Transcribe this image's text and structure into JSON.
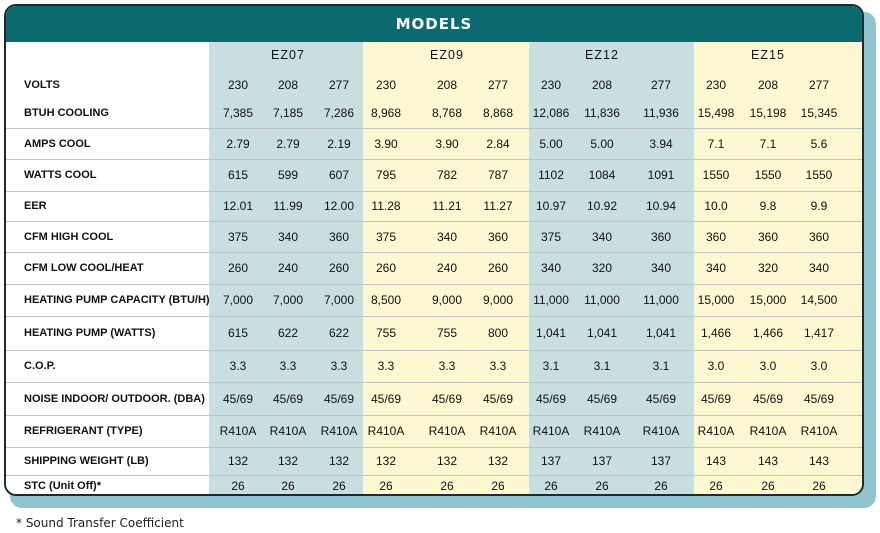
{
  "header": {
    "title": "MODELS"
  },
  "models": [
    "EZ07",
    "EZ09",
    "EZ12",
    "EZ15"
  ],
  "voltage_row": {
    "label": "VOLTS",
    "values": [
      "230",
      "208",
      "277",
      "230",
      "208",
      "277",
      "230",
      "208",
      "277",
      "230",
      "208",
      "277"
    ]
  },
  "rows": [
    {
      "label": "BTUH COOLING",
      "values": [
        "7,385",
        "7,185",
        "7,286",
        "8,968",
        "8,768",
        "8,868",
        "12,086",
        "11,836",
        "11,936",
        "15,498",
        "15,198",
        "15,345"
      ]
    },
    {
      "label": "AMPS COOL",
      "values": [
        "2.79",
        "2.79",
        "2.19",
        "3.90",
        "3.90",
        "2.84",
        "5.00",
        "5.00",
        "3.94",
        "7.1",
        "7.1",
        "5.6"
      ]
    },
    {
      "label": "WATTS COOL",
      "values": [
        "615",
        "599",
        "607",
        "795",
        "782",
        "787",
        "1102",
        "1084",
        "1091",
        "1550",
        "1550",
        "1550"
      ]
    },
    {
      "label": "EER",
      "values": [
        "12.01",
        "11.99",
        "12.00",
        "11.28",
        "11.21",
        "11.27",
        "10.97",
        "10.92",
        "10.94",
        "10.0",
        "9.8",
        "9.9"
      ]
    },
    {
      "label": "CFM HIGH COOL",
      "values": [
        "375",
        "340",
        "360",
        "375",
        "340",
        "360",
        "375",
        "340",
        "360",
        "360",
        "360",
        "360"
      ]
    },
    {
      "label": "CFM LOW COOL/HEAT",
      "values": [
        "260",
        "240",
        "260",
        "260",
        "240",
        "260",
        "340",
        "320",
        "340",
        "340",
        "320",
        "340"
      ]
    },
    {
      "label": "HEATING PUMP CAPACITY (BTU/H)",
      "values": [
        "7,000",
        "7,000",
        "7,000",
        "8,500",
        "9,000",
        "9,000",
        "11,000",
        "11,000",
        "11,000",
        "15,000",
        "15,000",
        "14,500"
      ]
    },
    {
      "label": "HEATING PUMP (WATTS)",
      "values": [
        "615",
        "622",
        "622",
        "755",
        "755",
        "800",
        "1,041",
        "1,041",
        "1,041",
        "1,466",
        "1,466",
        "1,417"
      ]
    },
    {
      "label": "C.O.P.",
      "values": [
        "3.3",
        "3.3",
        "3.3",
        "3.3",
        "3.3",
        "3.3",
        "3.1",
        "3.1",
        "3.1",
        "3.0",
        "3.0",
        "3.0"
      ]
    },
    {
      "label": "NOISE INDOOR/ OUTDOOR. (DBA)",
      "values": [
        "45/69",
        "45/69",
        "45/69",
        "45/69",
        "45/69",
        "45/69",
        "45/69",
        "45/69",
        "45/69",
        "45/69",
        "45/69",
        "45/69"
      ]
    },
    {
      "label": "REFRIGERANT (TYPE)",
      "values": [
        "R410A",
        "R410A",
        "R410A",
        "R410A",
        "R410A",
        "R410A",
        "R410A",
        "R410A",
        "R410A",
        "R410A",
        "R410A",
        "R410A"
      ]
    },
    {
      "label": "SHIPPING WEIGHT (LB)",
      "values": [
        "132",
        "132",
        "132",
        "132",
        "132",
        "132",
        "137",
        "137",
        "137",
        "143",
        "143",
        "143"
      ]
    },
    {
      "label": "STC (Unit Off)*",
      "values": [
        "26",
        "26",
        "26",
        "26",
        "26",
        "26",
        "26",
        "26",
        "26",
        "26",
        "26",
        "26"
      ]
    }
  ],
  "footnote": "* Sound Transfer Coefficient"
}
